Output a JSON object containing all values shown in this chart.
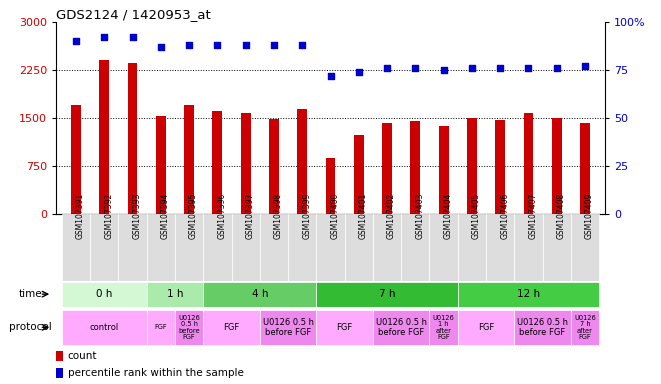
{
  "title": "GDS2124 / 1420953_at",
  "samples": [
    "GSM107391",
    "GSM107392",
    "GSM107393",
    "GSM107394",
    "GSM107395",
    "GSM107396",
    "GSM107397",
    "GSM107398",
    "GSM107399",
    "GSM107400",
    "GSM107401",
    "GSM107402",
    "GSM107403",
    "GSM107404",
    "GSM107405",
    "GSM107406",
    "GSM107407",
    "GSM107408",
    "GSM107409"
  ],
  "counts": [
    1700,
    2400,
    2350,
    1530,
    1700,
    1600,
    1580,
    1480,
    1640,
    870,
    1240,
    1420,
    1450,
    1380,
    1500,
    1460,
    1580,
    1500,
    1420
  ],
  "percentile": [
    90,
    92,
    92,
    87,
    88,
    88,
    88,
    88,
    88,
    72,
    74,
    76,
    76,
    75,
    76,
    76,
    76,
    76,
    77
  ],
  "bar_color": "#cc0000",
  "dot_color": "#0000cc",
  "ylim_left": [
    0,
    3000
  ],
  "ylim_right": [
    0,
    100
  ],
  "yticks_left": [
    0,
    750,
    1500,
    2250,
    3000
  ],
  "yticks_right": [
    0,
    25,
    50,
    75,
    100
  ],
  "grid_values": [
    750,
    1500,
    2250
  ],
  "time_groups": [
    {
      "label": "0 h",
      "start": 0,
      "end": 3,
      "color": "#d4f7d4"
    },
    {
      "label": "1 h",
      "start": 3,
      "end": 5,
      "color": "#aaeaaa"
    },
    {
      "label": "4 h",
      "start": 5,
      "end": 9,
      "color": "#66cc66"
    },
    {
      "label": "7 h",
      "start": 9,
      "end": 14,
      "color": "#33bb33"
    },
    {
      "label": "12 h",
      "start": 14,
      "end": 19,
      "color": "#44cc44"
    }
  ],
  "protocol_groups": [
    {
      "label": "control",
      "start": 0,
      "end": 3,
      "color": "#ffaaff"
    },
    {
      "label": "FGF",
      "start": 3,
      "end": 4,
      "color": "#ffaaff"
    },
    {
      "label": "U0126\n0.5 h\nbefore\nFGF",
      "start": 4,
      "end": 5,
      "color": "#ee88ee"
    },
    {
      "label": "FGF",
      "start": 5,
      "end": 7,
      "color": "#ffaaff"
    },
    {
      "label": "U0126 0.5 h\nbefore FGF",
      "start": 7,
      "end": 9,
      "color": "#ee88ee"
    },
    {
      "label": "FGF",
      "start": 9,
      "end": 11,
      "color": "#ffaaff"
    },
    {
      "label": "U0126 0.5 h\nbefore FGF",
      "start": 11,
      "end": 13,
      "color": "#ee88ee"
    },
    {
      "label": "U0126\n1 h\nafter\nFGF",
      "start": 13,
      "end": 14,
      "color": "#ee88ee"
    },
    {
      "label": "FGF",
      "start": 14,
      "end": 16,
      "color": "#ffaaff"
    },
    {
      "label": "U0126 0.5 h\nbefore FGF",
      "start": 16,
      "end": 18,
      "color": "#ee88ee"
    },
    {
      "label": "U0126\n7 h\nafter\nFGF",
      "start": 18,
      "end": 19,
      "color": "#ee88ee"
    }
  ],
  "legend_count_label": "count",
  "legend_pct_label": "percentile rank within the sample",
  "time_label": "time",
  "protocol_label": "protocol",
  "xtick_bg": "#dddddd"
}
